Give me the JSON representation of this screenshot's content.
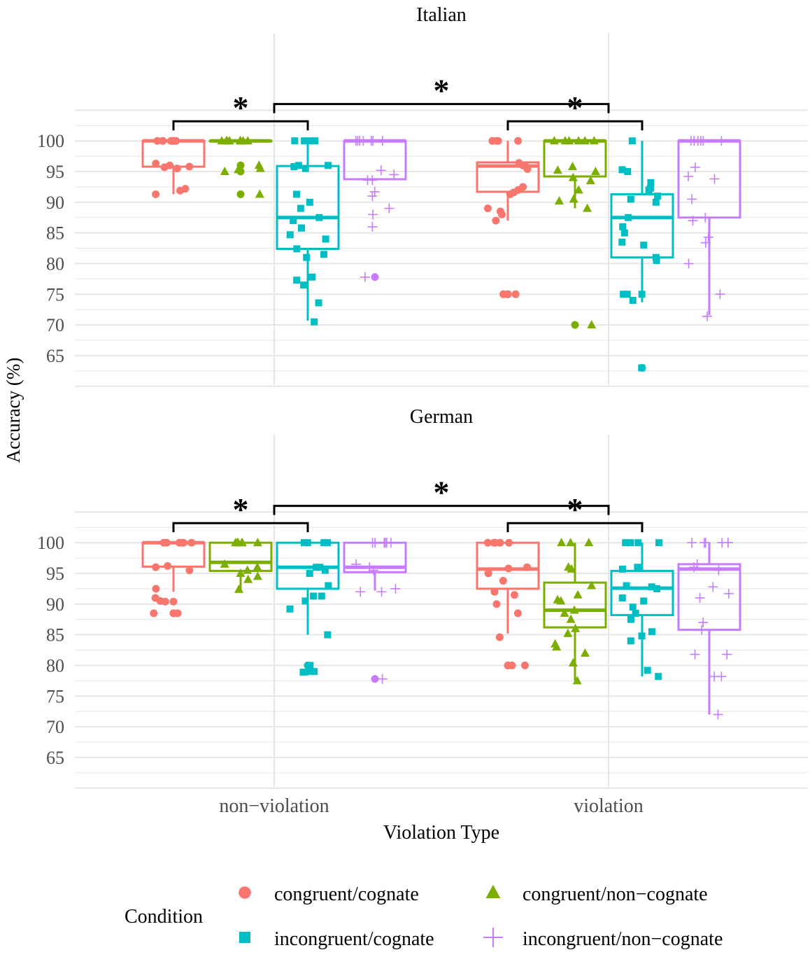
{
  "chart_data": {
    "type": "boxplot",
    "xlabel": "Violation Type",
    "ylabel": "Accuracy (%)",
    "categories": [
      "non−violation",
      "violation"
    ],
    "ylim": [
      60.2,
      117.6
    ],
    "yticks": [
      65,
      70,
      75,
      80,
      85,
      90,
      95,
      100
    ],
    "grid": true,
    "legend": {
      "title": "Condition",
      "position": "bottom",
      "entries": [
        {
          "name": "congruent/cognate",
          "color": "#F8766D",
          "shape": "circle"
        },
        {
          "name": "congruent/non−cognate",
          "color": "#7CAE00",
          "shape": "triangle"
        },
        {
          "name": "incongruent/cognate",
          "color": "#00BFC4",
          "shape": "square"
        },
        {
          "name": "incongruent/non−cognate",
          "color": "#C77CFF",
          "shape": "plus"
        }
      ]
    },
    "panels": [
      {
        "title": "Italian",
        "significance": [
          {
            "from": [
              0,
              0
            ],
            "to": [
              0,
              2
            ],
            "y": 103.2,
            "label": "*"
          },
          {
            "from": [
              0,
              -1
            ],
            "to": [
              1,
              -1
            ],
            "y": 106,
            "label": "*"
          },
          {
            "from": [
              1,
              0
            ],
            "to": [
              1,
              2
            ],
            "y": 103.2,
            "label": "*"
          }
        ],
        "groups": [
          {
            "category": 0,
            "series": 0,
            "min": 91.3,
            "q1": 95.8,
            "median": 100,
            "q3": 100,
            "max": 100,
            "outliers": [],
            "points": [
              100,
              100,
              100,
              100,
              100,
              100,
              96.3,
              95.8,
              95.5,
              96,
              95.7,
              92.2,
              91.9,
              91.3
            ]
          },
          {
            "category": 0,
            "series": 1,
            "min": 100,
            "q1": 100,
            "median": 100,
            "q3": 100,
            "max": 100,
            "outliers": [
              96,
              95,
              91.3
            ],
            "points": [
              100,
              100,
              100,
              100,
              100,
              100,
              100,
              100,
              96,
              95.5,
              95,
              95.3,
              91.3
            ]
          },
          {
            "category": 0,
            "series": 2,
            "min": 70.7,
            "q1": 82.4,
            "median": 87.5,
            "q3": 95.9,
            "max": 100,
            "outliers": [],
            "points": [
              100,
              100,
              100,
              100,
              96,
              95.8,
              96,
              95.5,
              91.3,
              90,
              89,
              87,
              87.5,
              85.8,
              85.8,
              84.7,
              84,
              82.4,
              81.5,
              81,
              77.3,
              77.8,
              76.5,
              73.6,
              70.5
            ]
          },
          {
            "category": 0,
            "series": 3,
            "min": 93.75,
            "q1": 93.75,
            "median": 100,
            "q3": 100,
            "max": 100,
            "outliers": [
              77.8
            ],
            "points": [
              100,
              100,
              100,
              100,
              100,
              100,
              100,
              95.2,
              94.5,
              93.6,
              93.6,
              91.7,
              91,
              89,
              88,
              86,
              77.8
            ]
          },
          {
            "category": 1,
            "series": 0,
            "min": 87,
            "q1": 91.7,
            "median": 95.9,
            "q3": 96.5,
            "max": 100,
            "outliers": [
              75,
              75
            ],
            "points": [
              100,
              100,
              100,
              100,
              96.4,
              96,
              95.4,
              95.8,
              92.5,
              92,
              91.6,
              91.3,
              89,
              88.5,
              88,
              87,
              75,
              75
            ]
          },
          {
            "category": 1,
            "series": 1,
            "min": 89,
            "q1": 94.2,
            "median": 100,
            "q3": 100,
            "max": 100,
            "outliers": [
              70
            ],
            "points": [
              100,
              100,
              100,
              100,
              100,
              100,
              95.8,
              95.2,
              95,
              94,
              93.5,
              92,
              90.5,
              90.2,
              89,
              70
            ]
          },
          {
            "category": 1,
            "series": 2,
            "min": 73.7,
            "q1": 81,
            "median": 87.5,
            "q3": 91.3,
            "max": 100,
            "outliers": [
              63
            ],
            "points": [
              100,
              95.3,
              95,
              93.2,
              92.3,
              92,
              91,
              90.5,
              90,
              87.5,
              86,
              85,
              83.5,
              83,
              81,
              80.5,
              75,
              75,
              75,
              74,
              63
            ]
          },
          {
            "category": 1,
            "series": 3,
            "min": 71.6,
            "q1": 87.5,
            "median": 100,
            "q3": 100,
            "max": 100,
            "outliers": [],
            "points": [
              100,
              100,
              100,
              100,
              100,
              100,
              95.7,
              94.2,
              93.8,
              90.5,
              87.5,
              87,
              84.3,
              83.4,
              80,
              75,
              71.4
            ]
          }
        ]
      },
      {
        "title": "German",
        "significance": [
          {
            "from": [
              0,
              0
            ],
            "to": [
              0,
              2
            ],
            "y": 103.2,
            "label": "*"
          },
          {
            "from": [
              0,
              -1
            ],
            "to": [
              1,
              -1
            ],
            "y": 106,
            "label": "*"
          },
          {
            "from": [
              1,
              0
            ],
            "to": [
              1,
              2
            ],
            "y": 103.2,
            "label": "*"
          }
        ],
        "groups": [
          {
            "category": 0,
            "series": 0,
            "min": 92,
            "q1": 96.1,
            "median": 100,
            "q3": 100,
            "max": 100,
            "outliers": [
              90.4,
              88.5,
              88.5
            ],
            "points": [
              100,
              100,
              100,
              100,
              100,
              100,
              96.2,
              96,
              95.5,
              92.5,
              91,
              90.5,
              90.4,
              88.5,
              88.5
            ]
          },
          {
            "category": 0,
            "series": 1,
            "min": 92.4,
            "q1": 95.4,
            "median": 96.8,
            "q3": 100,
            "max": 100,
            "outliers": [],
            "points": [
              100,
              100,
              100,
              100,
              100,
              100,
              96.5,
              96,
              95.5,
              95,
              94.5,
              94,
              92.4
            ]
          },
          {
            "category": 0,
            "series": 2,
            "min": 85,
            "q1": 92.5,
            "median": 96,
            "q3": 100,
            "max": 100,
            "outliers": [
              80,
              79
            ],
            "points": [
              100,
              100,
              100,
              100,
              96,
              96,
              95.5,
              95,
              93,
              91.3,
              91.3,
              90.5,
              89.2,
              85,
              80,
              79,
              78.9
            ]
          },
          {
            "category": 0,
            "series": 3,
            "min": 92.2,
            "q1": 95.2,
            "median": 96,
            "q3": 100,
            "max": 100,
            "outliers": [
              77.8
            ],
            "points": [
              100,
              100,
              100,
              100,
              100,
              100,
              96.5,
              96,
              95.5,
              92.5,
              92,
              92,
              77.8
            ]
          },
          {
            "category": 1,
            "series": 0,
            "min": 85.2,
            "q1": 92.5,
            "median": 95.7,
            "q3": 100,
            "max": 100,
            "outliers": [
              80,
              80
            ],
            "points": [
              100,
              100,
              100,
              100,
              100,
              96,
              95.8,
              95,
              93.8,
              92,
              91.5,
              90,
              88.5,
              84.6,
              80,
              80
            ]
          },
          {
            "category": 1,
            "series": 1,
            "min": 77.5,
            "q1": 86.2,
            "median": 89,
            "q3": 93.5,
            "max": 100,
            "outliers": [],
            "points": [
              100,
              100,
              100,
              96,
              95.7,
              93,
              91.5,
              90.7,
              90.5,
              89,
              88.5,
              87.5,
              86,
              85.2,
              83.5,
              83,
              82,
              80.4,
              77.5
            ]
          },
          {
            "category": 1,
            "series": 2,
            "min": 78.2,
            "q1": 88.2,
            "median": 92.6,
            "q3": 95.4,
            "max": 100,
            "outliers": [],
            "points": [
              100,
              100,
              100,
              100,
              96,
              95.7,
              93,
              92.8,
              92.5,
              91,
              90.5,
              89.5,
              88.5,
              87.5,
              85.5,
              84.8,
              84,
              79.2,
              78.2
            ]
          },
          {
            "category": 1,
            "series": 3,
            "min": 72,
            "q1": 85.8,
            "median": 95.7,
            "q3": 96.5,
            "max": 100,
            "outliers": [],
            "points": [
              100,
              100,
              100,
              100,
              100,
              100,
              96.5,
              96,
              95.5,
              92.8,
              91.7,
              91,
              87,
              85.8,
              81.8,
              81.8,
              78.2,
              78.2,
              72
            ]
          }
        ]
      }
    ]
  }
}
